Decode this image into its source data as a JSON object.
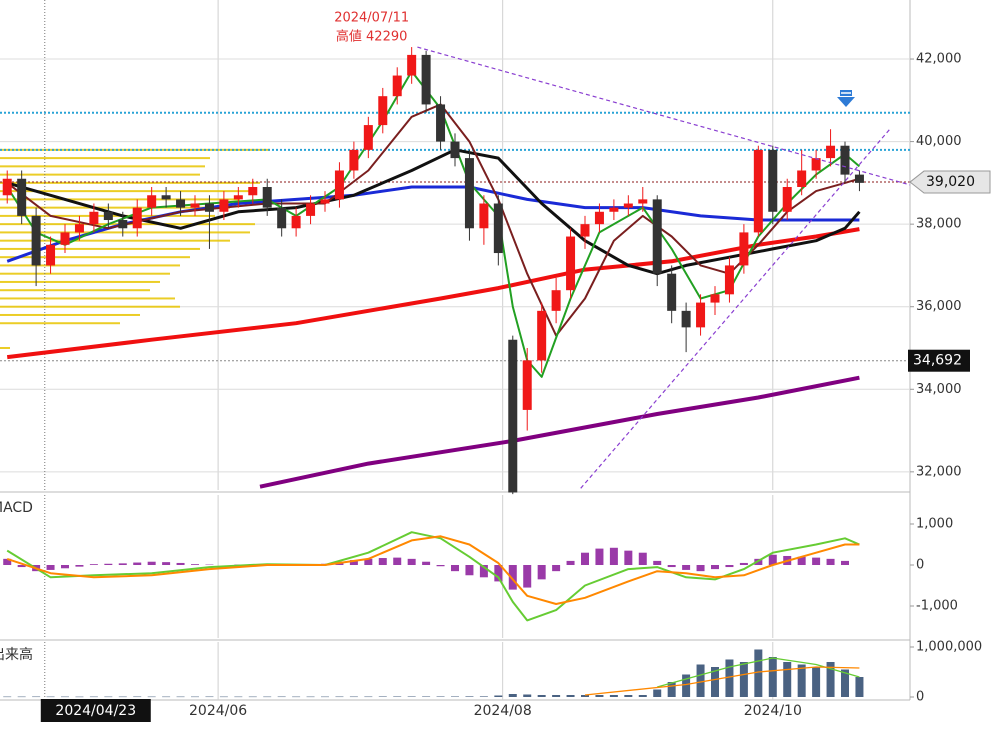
{
  "chart_data": [
    {
      "type": "candlestick",
      "xlim": [
        -0.5,
        62.5
      ],
      "xticks": [
        {
          "value": 14.6,
          "label": "2024/06"
        },
        {
          "value": 34.3,
          "label": "2024/08"
        },
        {
          "value": 53.0,
          "label": "2024/10"
        }
      ],
      "ylim": [
        31560,
        43430
      ],
      "yticks": [
        {
          "value": 32000,
          "label": "32,000"
        },
        {
          "value": 34000,
          "label": "34,000"
        },
        {
          "value": 36000,
          "label": "36,000"
        },
        {
          "value": 38000,
          "label": "38,000"
        },
        {
          "value": 40000,
          "label": "40,000"
        },
        {
          "value": 42000,
          "label": "42,000"
        }
      ],
      "grid": true,
      "up_color": "#f01818",
      "down_color": "#333333",
      "open": [
        38700,
        39100,
        38200,
        37000,
        37500,
        37800,
        38000,
        38300,
        38100,
        37900,
        38400,
        38700,
        38600,
        38400,
        38500,
        38300,
        38600,
        38700,
        38900,
        38400,
        37900,
        38200,
        38500,
        38600,
        39300,
        39800,
        40400,
        41100,
        41600,
        42100,
        40900,
        40000,
        39600,
        37900,
        38500,
        35200,
        33500,
        34700,
        35900,
        36400,
        37700,
        38000,
        38300,
        38400,
        38500,
        38600,
        36800,
        35900,
        35500,
        36100,
        36300,
        37000,
        37800,
        39800,
        38300,
        38900,
        39300,
        39600,
        39900,
        39200
      ],
      "high": [
        39300,
        39300,
        38400,
        37700,
        38000,
        38200,
        38500,
        38500,
        38300,
        38600,
        38900,
        38900,
        38800,
        38700,
        38700,
        38800,
        38900,
        39100,
        39100,
        38600,
        38400,
        38700,
        38800,
        39500,
        40000,
        40600,
        41300,
        41800,
        42290,
        42200,
        41100,
        40200,
        39800,
        38700,
        38700,
        35300,
        35000,
        36100,
        36700,
        37900,
        38200,
        38500,
        38600,
        38700,
        38900,
        38700,
        37000,
        36100,
        36300,
        36500,
        37200,
        38000,
        39900,
        39900,
        39100,
        39800,
        39800,
        40300,
        40000,
        39300
      ],
      "low": [
        38500,
        38000,
        36500,
        36800,
        37300,
        37600,
        37800,
        37900,
        37700,
        37700,
        38200,
        38400,
        38200,
        38200,
        37400,
        38100,
        38400,
        38500,
        38200,
        37700,
        37700,
        38000,
        38300,
        38400,
        39100,
        39600,
        40200,
        40900,
        41400,
        40700,
        39800,
        39400,
        37600,
        37500,
        37000,
        31460,
        33000,
        34400,
        35600,
        36200,
        37400,
        37800,
        38100,
        38200,
        38300,
        36500,
        35600,
        34900,
        35300,
        35800,
        36100,
        36800,
        37700,
        38000,
        38100,
        38700,
        39100,
        39400,
        39000,
        38800
      ],
      "close": [
        39100,
        38200,
        37000,
        37500,
        37800,
        38000,
        38300,
        38100,
        37900,
        38400,
        38700,
        38600,
        38400,
        38500,
        38300,
        38600,
        38700,
        38900,
        38400,
        37900,
        38200,
        38500,
        38600,
        39300,
        39800,
        40400,
        41100,
        41600,
        42100,
        40900,
        40000,
        39600,
        37900,
        38500,
        37300,
        31500,
        34700,
        35900,
        36400,
        37700,
        38000,
        38300,
        38400,
        38500,
        38600,
        36800,
        35900,
        35500,
        36100,
        36300,
        37000,
        37800,
        39800,
        38300,
        38900,
        39300,
        39600,
        39900,
        39200,
        39000
      ],
      "series": [
        {
          "color": "#f01010",
          "x": [
            0,
            10,
            20,
            30,
            34,
            40,
            46,
            52,
            56,
            59
          ],
          "values": [
            34780,
            35200,
            35600,
            36200,
            36450,
            36900,
            37100,
            37500,
            37700,
            37880
          ]
        },
        {
          "color": "#800080",
          "x": [
            17.5,
            25,
            35,
            45,
            52,
            59
          ],
          "values": [
            31640,
            32200,
            32750,
            33400,
            33800,
            34280
          ]
        },
        {
          "color": "#1a2ad6",
          "x": [
            0,
            4,
            8,
            12,
            16,
            20,
            24,
            28,
            32,
            36,
            40,
            44,
            48,
            52,
            56,
            59
          ],
          "values": [
            37100,
            37600,
            38000,
            38300,
            38500,
            38600,
            38700,
            38900,
            38900,
            38600,
            38400,
            38400,
            38200,
            38100,
            38100,
            38100
          ]
        },
        {
          "color": "#111111",
          "x": [
            0,
            4,
            8,
            12,
            16,
            20,
            24,
            28,
            31,
            34,
            37,
            40,
            43,
            45,
            47,
            50,
            53,
            56,
            58,
            59
          ],
          "values": [
            39000,
            38600,
            38200,
            37900,
            38300,
            38400,
            38700,
            39300,
            39800,
            39600,
            38500,
            37600,
            37000,
            36800,
            37000,
            37200,
            37400,
            37600,
            37900,
            38300
          ]
        },
        {
          "color": "#7a1f1f",
          "x": [
            0,
            3,
            7,
            12,
            18,
            22,
            25,
            28,
            30,
            32,
            34,
            36,
            38,
            40,
            42,
            44,
            46,
            48,
            50,
            52,
            54,
            56,
            58,
            59
          ],
          "values": [
            39000,
            38200,
            37900,
            38300,
            38500,
            38500,
            39300,
            40600,
            40900,
            40000,
            38600,
            36800,
            35300,
            36200,
            37600,
            38200,
            37700,
            37000,
            36800,
            37500,
            38300,
            38800,
            39000,
            39100
          ]
        },
        {
          "color": "#22a022",
          "x": [
            0,
            2,
            4,
            7,
            10,
            14,
            18,
            20,
            23,
            26,
            28,
            30,
            32,
            34,
            35,
            36,
            37,
            39,
            41,
            44,
            46,
            48,
            50,
            52,
            54,
            56,
            58,
            59
          ],
          "values": [
            38900,
            37800,
            37500,
            38000,
            38400,
            38500,
            38600,
            38200,
            38900,
            40500,
            41700,
            40800,
            39000,
            38200,
            36000,
            34700,
            34300,
            36200,
            37800,
            38400,
            37400,
            36200,
            36400,
            37700,
            38500,
            39200,
            39700,
            39400
          ]
        }
      ],
      "hlines": [
        {
          "value": 40700,
          "color": "#29a3d6"
        },
        {
          "value": 39800,
          "color": "#29a3d6"
        },
        {
          "value": 39020,
          "color": "#8b1a1a",
          "label": "39,020"
        },
        {
          "value": 34692,
          "color": "#888888",
          "label": "34,692"
        }
      ],
      "trendlines": [
        {
          "color": "#8a3fd1",
          "x": [
            28.4,
            62.5
          ],
          "values": [
            42290,
            38950
          ]
        },
        {
          "color": "#8a3fd1",
          "x": [
            39.7,
            61.1
          ],
          "values": [
            31600,
            40300
          ]
        }
      ],
      "volume_profile": {
        "color": "#e8c400",
        "prices": [
          39800,
          39600,
          39400,
          39200,
          39000,
          38800,
          38600,
          38400,
          38200,
          38000,
          37800,
          37600,
          37400,
          37200,
          37000,
          36800,
          36600,
          36400,
          36200,
          36000,
          35800,
          35600,
          35000
        ],
        "values": [
          270,
          210,
          205,
          200,
          260,
          250,
          240,
          230,
          215,
          255,
          250,
          230,
          200,
          190,
          180,
          170,
          160,
          150,
          175,
          180,
          140,
          120,
          10
        ]
      },
      "annotation": {
        "x": 28,
        "value": 42290,
        "date": "2024/07/11",
        "text": "高値 42290",
        "color": "#e03030"
      },
      "crosshair": {
        "x": 2.6,
        "label": "2024/04/23"
      }
    },
    {
      "type": "macd",
      "title": "MACD",
      "ylim": [
        -1780,
        1707
      ],
      "yticks": [
        {
          "value": -1000,
          "label": "-1,000"
        },
        0,
        {
          "value": 1000,
          "label": "1,000"
        }
      ],
      "hist_color": "#9a3aa8",
      "histogram": [
        150,
        -50,
        -150,
        -120,
        -80,
        -40,
        20,
        30,
        40,
        60,
        80,
        70,
        50,
        20,
        10,
        0,
        10,
        20,
        -10,
        -20,
        -10,
        0,
        30,
        80,
        120,
        150,
        170,
        180,
        150,
        80,
        -30,
        -150,
        -250,
        -300,
        -400,
        -600,
        -550,
        -350,
        -150,
        100,
        300,
        400,
        420,
        350,
        300,
        100,
        -50,
        -120,
        -150,
        -100,
        -50,
        50,
        150,
        250,
        220,
        200,
        180,
        150,
        100,
        0
      ],
      "series": [
        {
          "color": "#66cc33",
          "x": [
            0,
            3,
            6,
            10,
            14,
            18,
            22,
            25,
            28,
            30,
            32,
            34,
            35,
            36,
            38,
            40,
            43,
            45,
            47,
            49,
            51,
            53,
            56,
            58,
            59
          ],
          "values": [
            350,
            -300,
            -250,
            -200,
            -50,
            20,
            0,
            300,
            800,
            650,
            200,
            -300,
            -900,
            -1350,
            -1100,
            -500,
            -100,
            -50,
            -300,
            -350,
            -100,
            300,
            500,
            650,
            500
          ]
        },
        {
          "color": "#ff8800",
          "x": [
            0,
            3,
            6,
            10,
            14,
            18,
            22,
            25,
            28,
            30,
            32,
            34,
            36,
            38,
            40,
            43,
            45,
            47,
            49,
            51,
            53,
            56,
            58,
            59
          ],
          "values": [
            150,
            -200,
            -300,
            -250,
            -100,
            0,
            0,
            150,
            600,
            700,
            500,
            50,
            -750,
            -950,
            -800,
            -400,
            -150,
            -200,
            -300,
            -250,
            0,
            300,
            500,
            500
          ]
        }
      ]
    },
    {
      "type": "volume",
      "title": "出来高",
      "ylim": [
        -60000,
        1100000
      ],
      "yticks": [
        0,
        {
          "value": 1000000,
          "label": "1,000,000"
        }
      ],
      "bar_color": "#4a6282",
      "values": [
        8000,
        8000,
        9000,
        8000,
        8000,
        7000,
        8000,
        8000,
        8000,
        9000,
        8000,
        8000,
        8000,
        8000,
        9000,
        8000,
        8000,
        8000,
        8000,
        9000,
        8000,
        8000,
        8000,
        9000,
        9000,
        9000,
        10000,
        10000,
        10000,
        10000,
        10000,
        10000,
        12000,
        12000,
        30000,
        60000,
        50000,
        40000,
        40000,
        40000,
        40000,
        40000,
        40000,
        40000,
        40000,
        150000,
        300000,
        450000,
        650000,
        600000,
        750000,
        700000,
        950000,
        800000,
        700000,
        650000,
        600000,
        700000,
        550000,
        400000
      ],
      "series": [
        {
          "color": "#66cc33",
          "x": [
            45,
            50,
            53,
            56,
            59
          ],
          "values": [
            200000,
            600000,
            780000,
            650000,
            400000
          ]
        },
        {
          "color": "#ff8800",
          "x": [
            40,
            47,
            52,
            56,
            59
          ],
          "values": [
            40000,
            250000,
            500000,
            600000,
            580000
          ]
        }
      ]
    }
  ]
}
